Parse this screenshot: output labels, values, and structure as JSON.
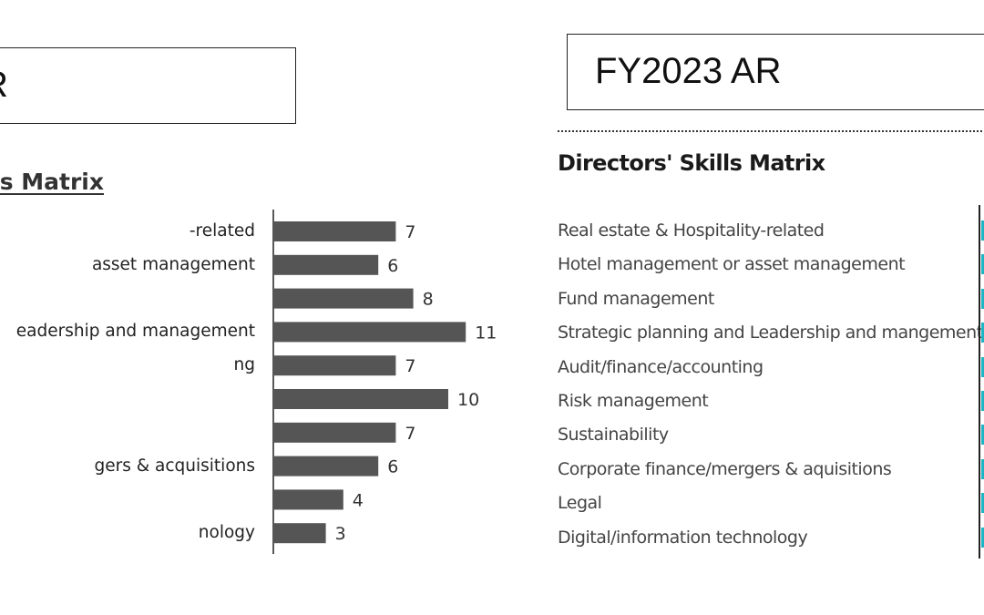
{
  "left_panel": {
    "header_visible": "R",
    "title_visible": "s Matrix"
  },
  "right_panel": {
    "header": "FY2023 AR",
    "title": "Directors' Skills Matrix",
    "categories": [
      "Real estate & Hospitality-related",
      "Hotel management or asset management",
      "Fund management",
      "Strategic planning and Leadership and mangement",
      "Audit/finance/accounting",
      "Risk management",
      "Sustainability",
      "Corporate finance/mergers & aquisitions",
      "Legal",
      "Digital/information technology"
    ],
    "bar_color": "#1fb3c4"
  },
  "chart_data": {
    "type": "bar",
    "orientation": "horizontal",
    "categories": [
      "-related",
      "asset management",
      "",
      "eadership and management",
      "ng",
      "",
      "",
      "gers & acquisitions",
      "",
      "nology"
    ],
    "values": [
      7,
      6,
      8,
      11,
      7,
      10,
      7,
      6,
      4,
      3
    ],
    "xlim": [
      0,
      14
    ],
    "bar_color": "#555555",
    "grid": false
  }
}
